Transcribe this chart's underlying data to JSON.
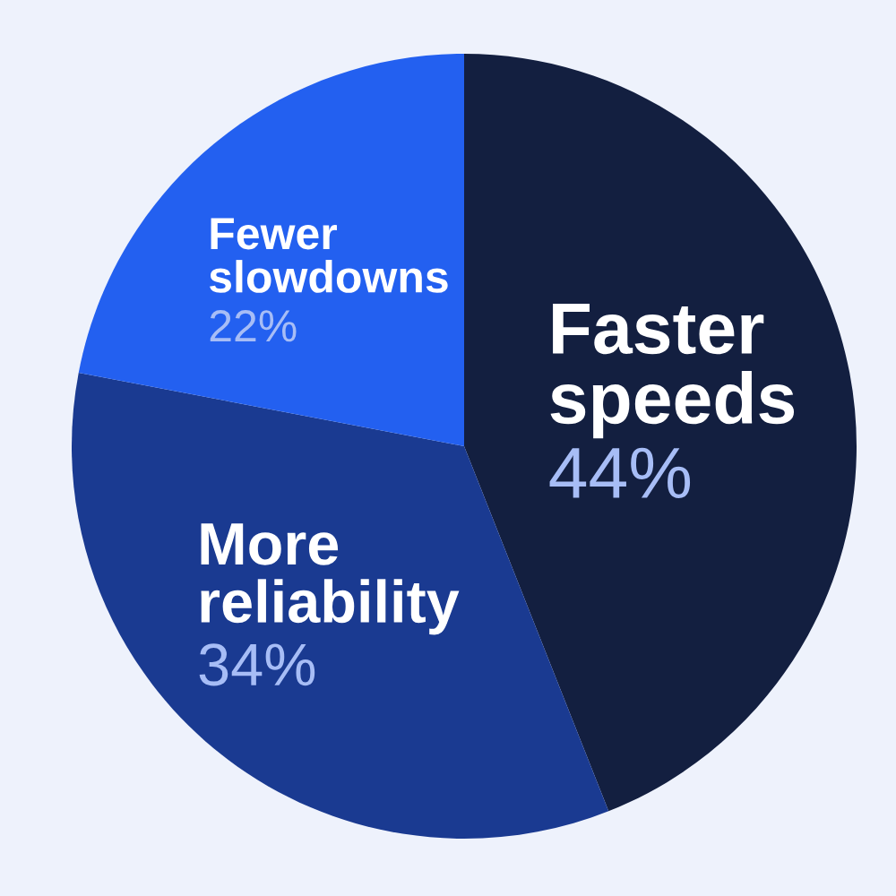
{
  "chart_data": {
    "type": "pie",
    "categories": [
      "Faster speeds",
      "More reliability",
      "Fewer slowdowns"
    ],
    "values": [
      44,
      34,
      22
    ],
    "colors": [
      "#131f40",
      "#1a3a91",
      "#2360f0"
    ],
    "value_labels": [
      "44%",
      "34%",
      "22%"
    ]
  }
}
